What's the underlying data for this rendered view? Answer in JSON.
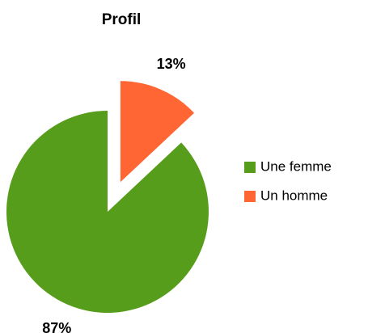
{
  "chart_data": {
    "type": "pie",
    "title": "Profil",
    "categories": [
      "Une femme",
      "Un homme"
    ],
    "values": [
      87,
      13
    ],
    "value_labels": [
      "87%",
      "13%"
    ],
    "colors": [
      "#579d1c",
      "#ff6633"
    ],
    "legend": "right"
  }
}
